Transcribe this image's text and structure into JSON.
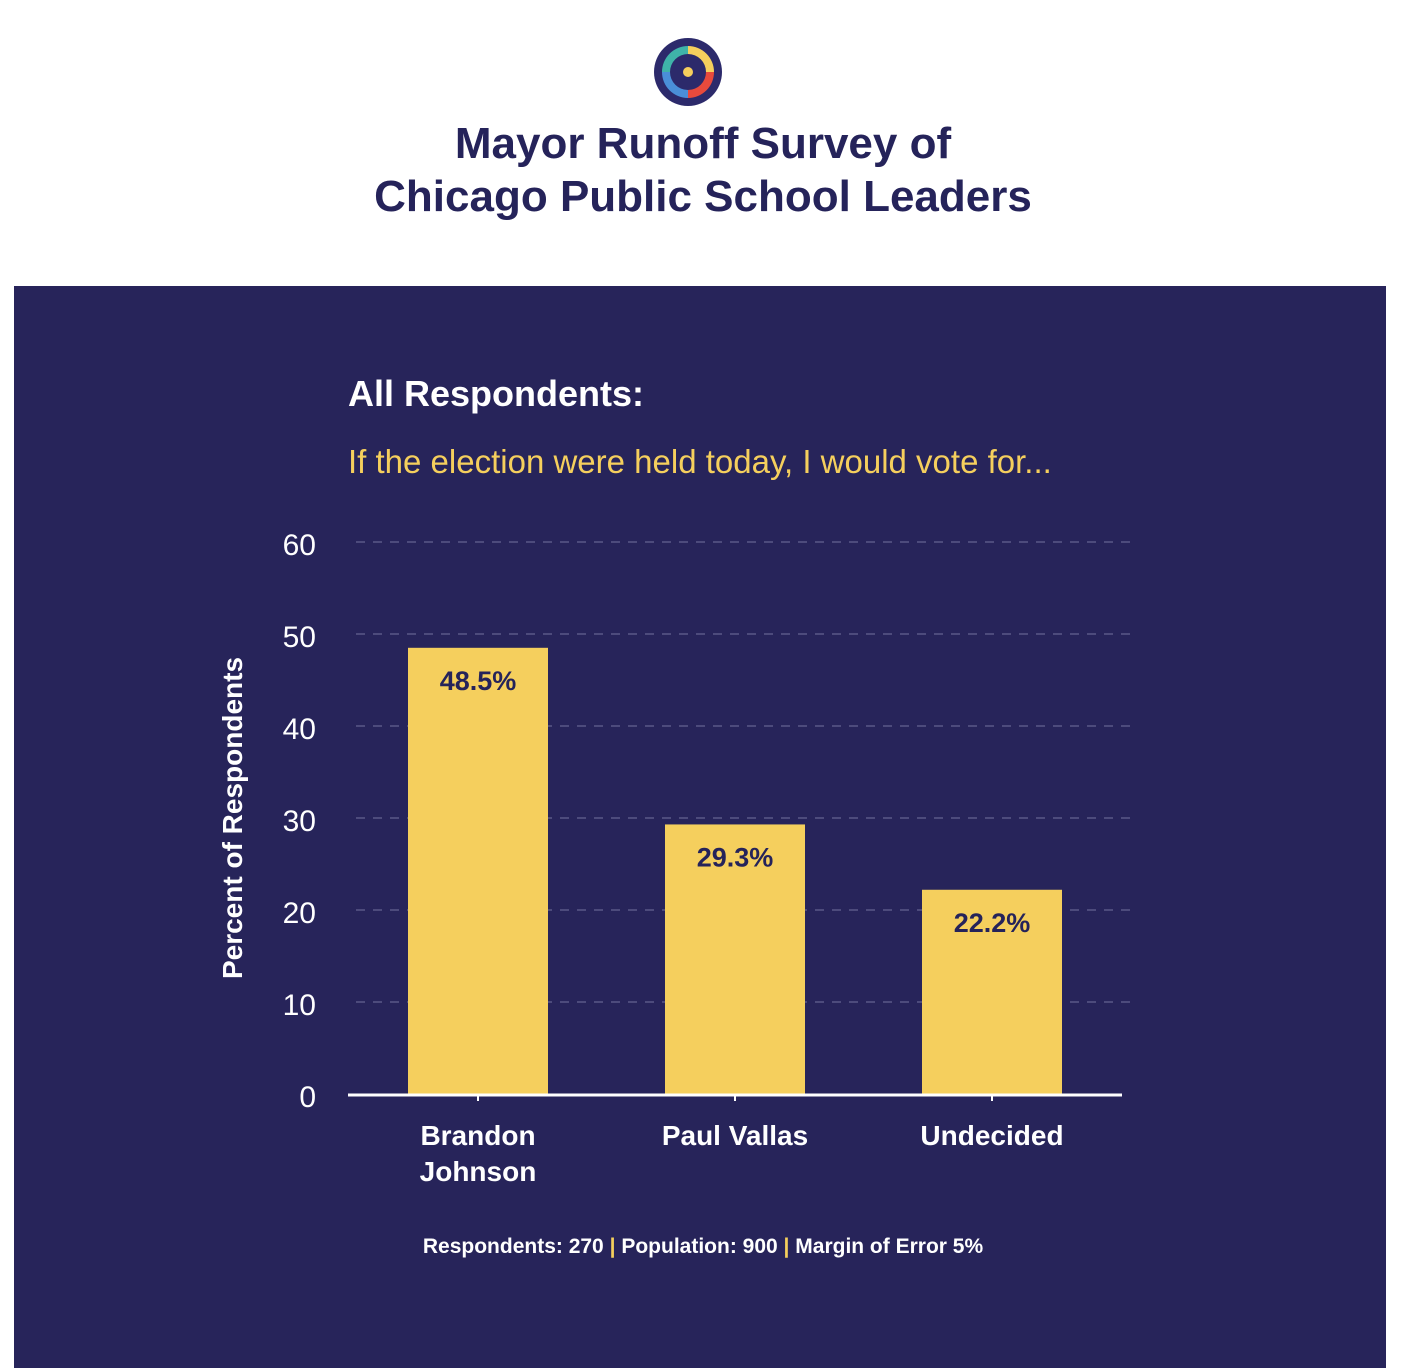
{
  "header": {
    "logo": "circular-multicolor-logo",
    "title_line1": "Mayor Runoff Survey of",
    "title_line2": "Chicago Public School Leaders"
  },
  "panel": {
    "heading": "All Respondents:",
    "question": "If the election were held today, I would vote for..."
  },
  "colors": {
    "title": "#25235a",
    "panel_bg": "#27245a",
    "bar": "#f5cf5d",
    "bar_label": "#25235a",
    "axis_text": "#ffffff",
    "grid": "#5a5888"
  },
  "footer": {
    "respondents": "Respondents: 270",
    "population": "Population: 900",
    "margin": "Margin of Error 5%",
    "separator": "|"
  },
  "chart_data": {
    "type": "bar",
    "categories": [
      [
        "Brandon",
        "Johnson"
      ],
      [
        "Paul Vallas"
      ],
      [
        "Undecided"
      ]
    ],
    "values": [
      48.5,
      29.3,
      22.2
    ],
    "value_labels": [
      "48.5%",
      "29.3%",
      "22.2%"
    ],
    "ylabel": "Percent of Respondents",
    "ylim": [
      0,
      60
    ],
    "yticks": [
      0,
      10,
      20,
      30,
      40,
      50,
      60
    ],
    "grid": true
  }
}
